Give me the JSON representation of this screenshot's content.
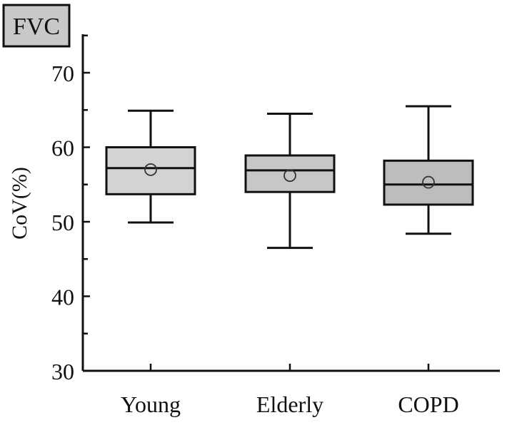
{
  "chart_data": {
    "type": "box",
    "title": "FVC",
    "xlabel": "",
    "ylabel": "CoV(%)",
    "ylim": [
      30,
      75
    ],
    "yticks": [
      30,
      40,
      50,
      60,
      70
    ],
    "categories": [
      "Young",
      "Elderly",
      "COPD"
    ],
    "boxes": [
      {
        "category": "Young",
        "whisker_low": 49.9,
        "q1": 53.7,
        "median": 57.2,
        "q3": 60.0,
        "whisker_high": 64.9,
        "mean": 57.0,
        "fill": "#d3d3d3"
      },
      {
        "category": "Elderly",
        "whisker_low": 46.5,
        "q1": 54.0,
        "median": 56.9,
        "q3": 58.9,
        "whisker_high": 64.5,
        "mean": 56.2,
        "fill": "#c7c7c7"
      },
      {
        "category": "COPD",
        "whisker_low": 48.4,
        "q1": 52.3,
        "median": 55.0,
        "q3": 58.2,
        "whisker_high": 65.5,
        "mean": 55.3,
        "fill": "#bdbdbd"
      }
    ],
    "grid": false,
    "legend": "none",
    "colors": {
      "axis": "#111111",
      "title_box_fill": "#c8c8c8"
    }
  }
}
